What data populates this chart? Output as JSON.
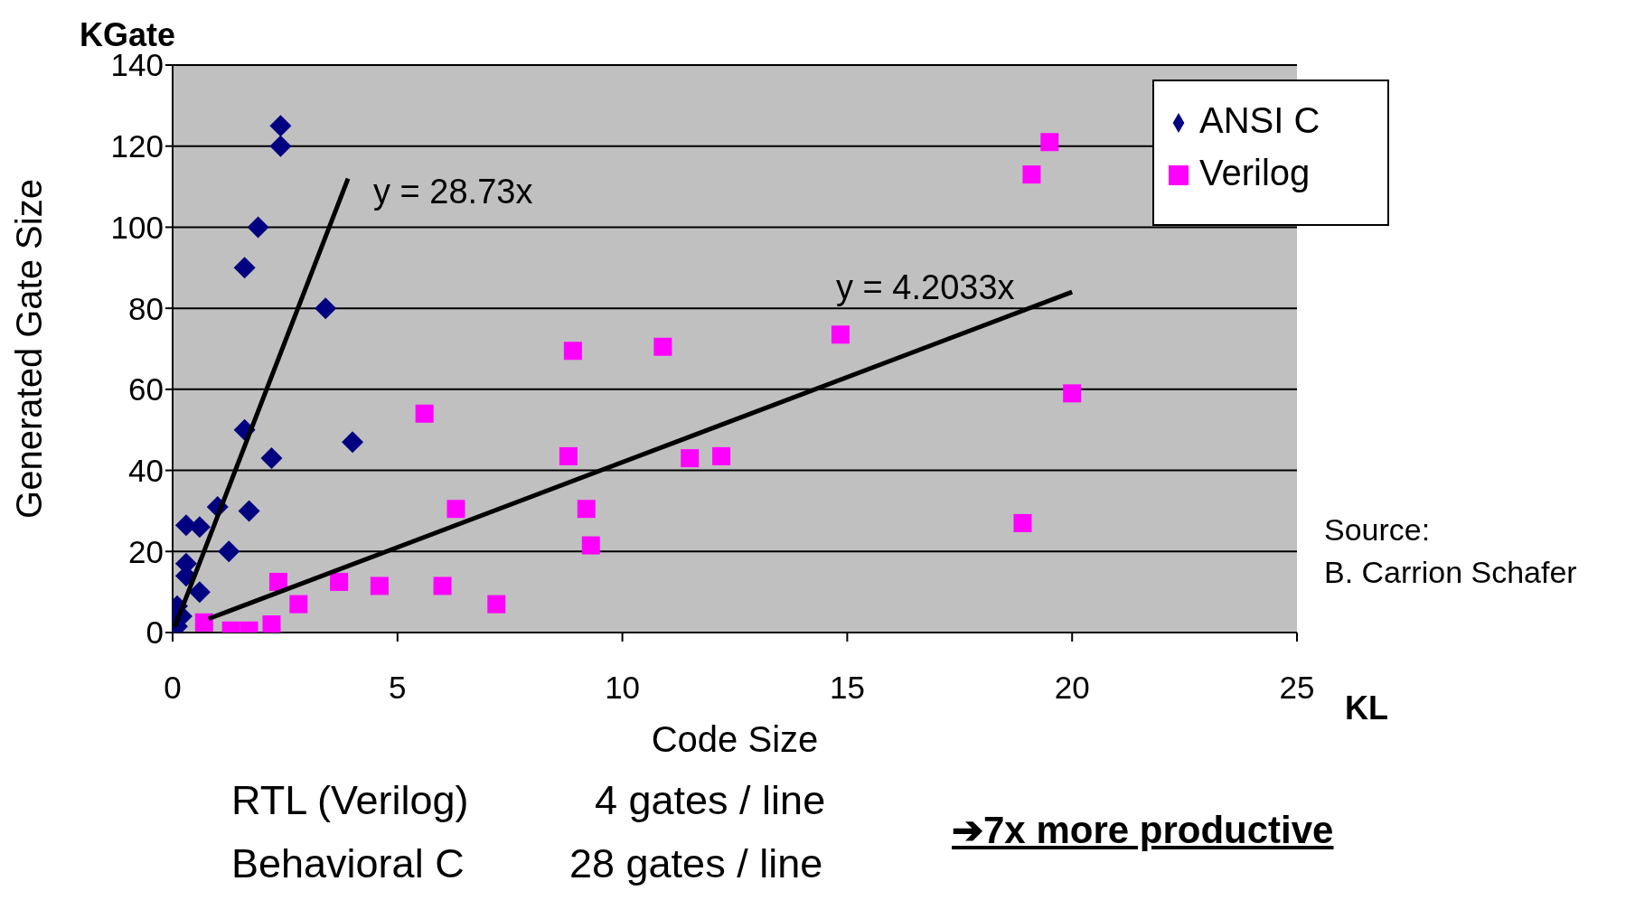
{
  "chart_data": {
    "type": "scatter",
    "xlabel": "Code Size",
    "ylabel": "Generated Gate Size",
    "xlim": [
      0,
      25
    ],
    "xticks": [
      0,
      5,
      10,
      15,
      20,
      25
    ],
    "ylim": [
      0,
      140
    ],
    "yticks": [
      0,
      20,
      40,
      60,
      80,
      100,
      120,
      140
    ],
    "grid": "y",
    "legend": "top right",
    "series": [
      {
        "name": "ANSI C",
        "color": "#000080",
        "marker": "diamond",
        "x": [
          2.4,
          2.4,
          1.9,
          1.6,
          3.4,
          1.6,
          4.0,
          2.2,
          1.0,
          1.7,
          0.3,
          0.6,
          1.25,
          0.3,
          0.3,
          0.6,
          0.1,
          0.2,
          0.1
        ],
        "values": [
          125,
          120,
          100,
          90,
          80,
          50,
          47,
          43,
          31,
          30,
          26.5,
          26,
          20,
          17,
          14,
          10,
          6.5,
          4,
          1.5
        ]
      },
      {
        "name": "Verilog",
        "color": "#ff00ff",
        "marker": "square",
        "x": [
          19.5,
          19.1,
          14.85,
          10.9,
          8.9,
          5.6,
          20.0,
          8.8,
          11.5,
          12.2,
          6.3,
          9.2,
          9.3,
          18.9,
          2.35,
          3.7,
          4.6,
          6.0,
          2.8,
          7.2,
          0.7,
          1.3,
          1.7,
          2.2
        ],
        "values": [
          121,
          113,
          73.5,
          70.5,
          69.5,
          54,
          59,
          43.5,
          43,
          43.5,
          30.5,
          30.5,
          21.5,
          27,
          12.5,
          12.5,
          11.5,
          11.5,
          7,
          7,
          2.5,
          0.5,
          0.5,
          2
        ]
      },
      {
        "type": "line",
        "color": "#000000",
        "marker": "none",
        "x": [
          0.05,
          3.9
        ],
        "values": [
          1.4,
          112
        ]
      },
      {
        "type": "line",
        "color": "#000000",
        "marker": "none",
        "x": [
          0.8,
          20
        ],
        "values": [
          3.4,
          84
        ]
      }
    ],
    "annotations": [
      "y = 28.73x",
      "y = 4.2033x",
      "KGate",
      "KL",
      "Source:\nB. Carrion Schafer",
      "RTL (Verilog)",
      "4 gates / line",
      "Behavioral C",
      "28 gates / line",
      "➔7x more productive"
    ]
  }
}
